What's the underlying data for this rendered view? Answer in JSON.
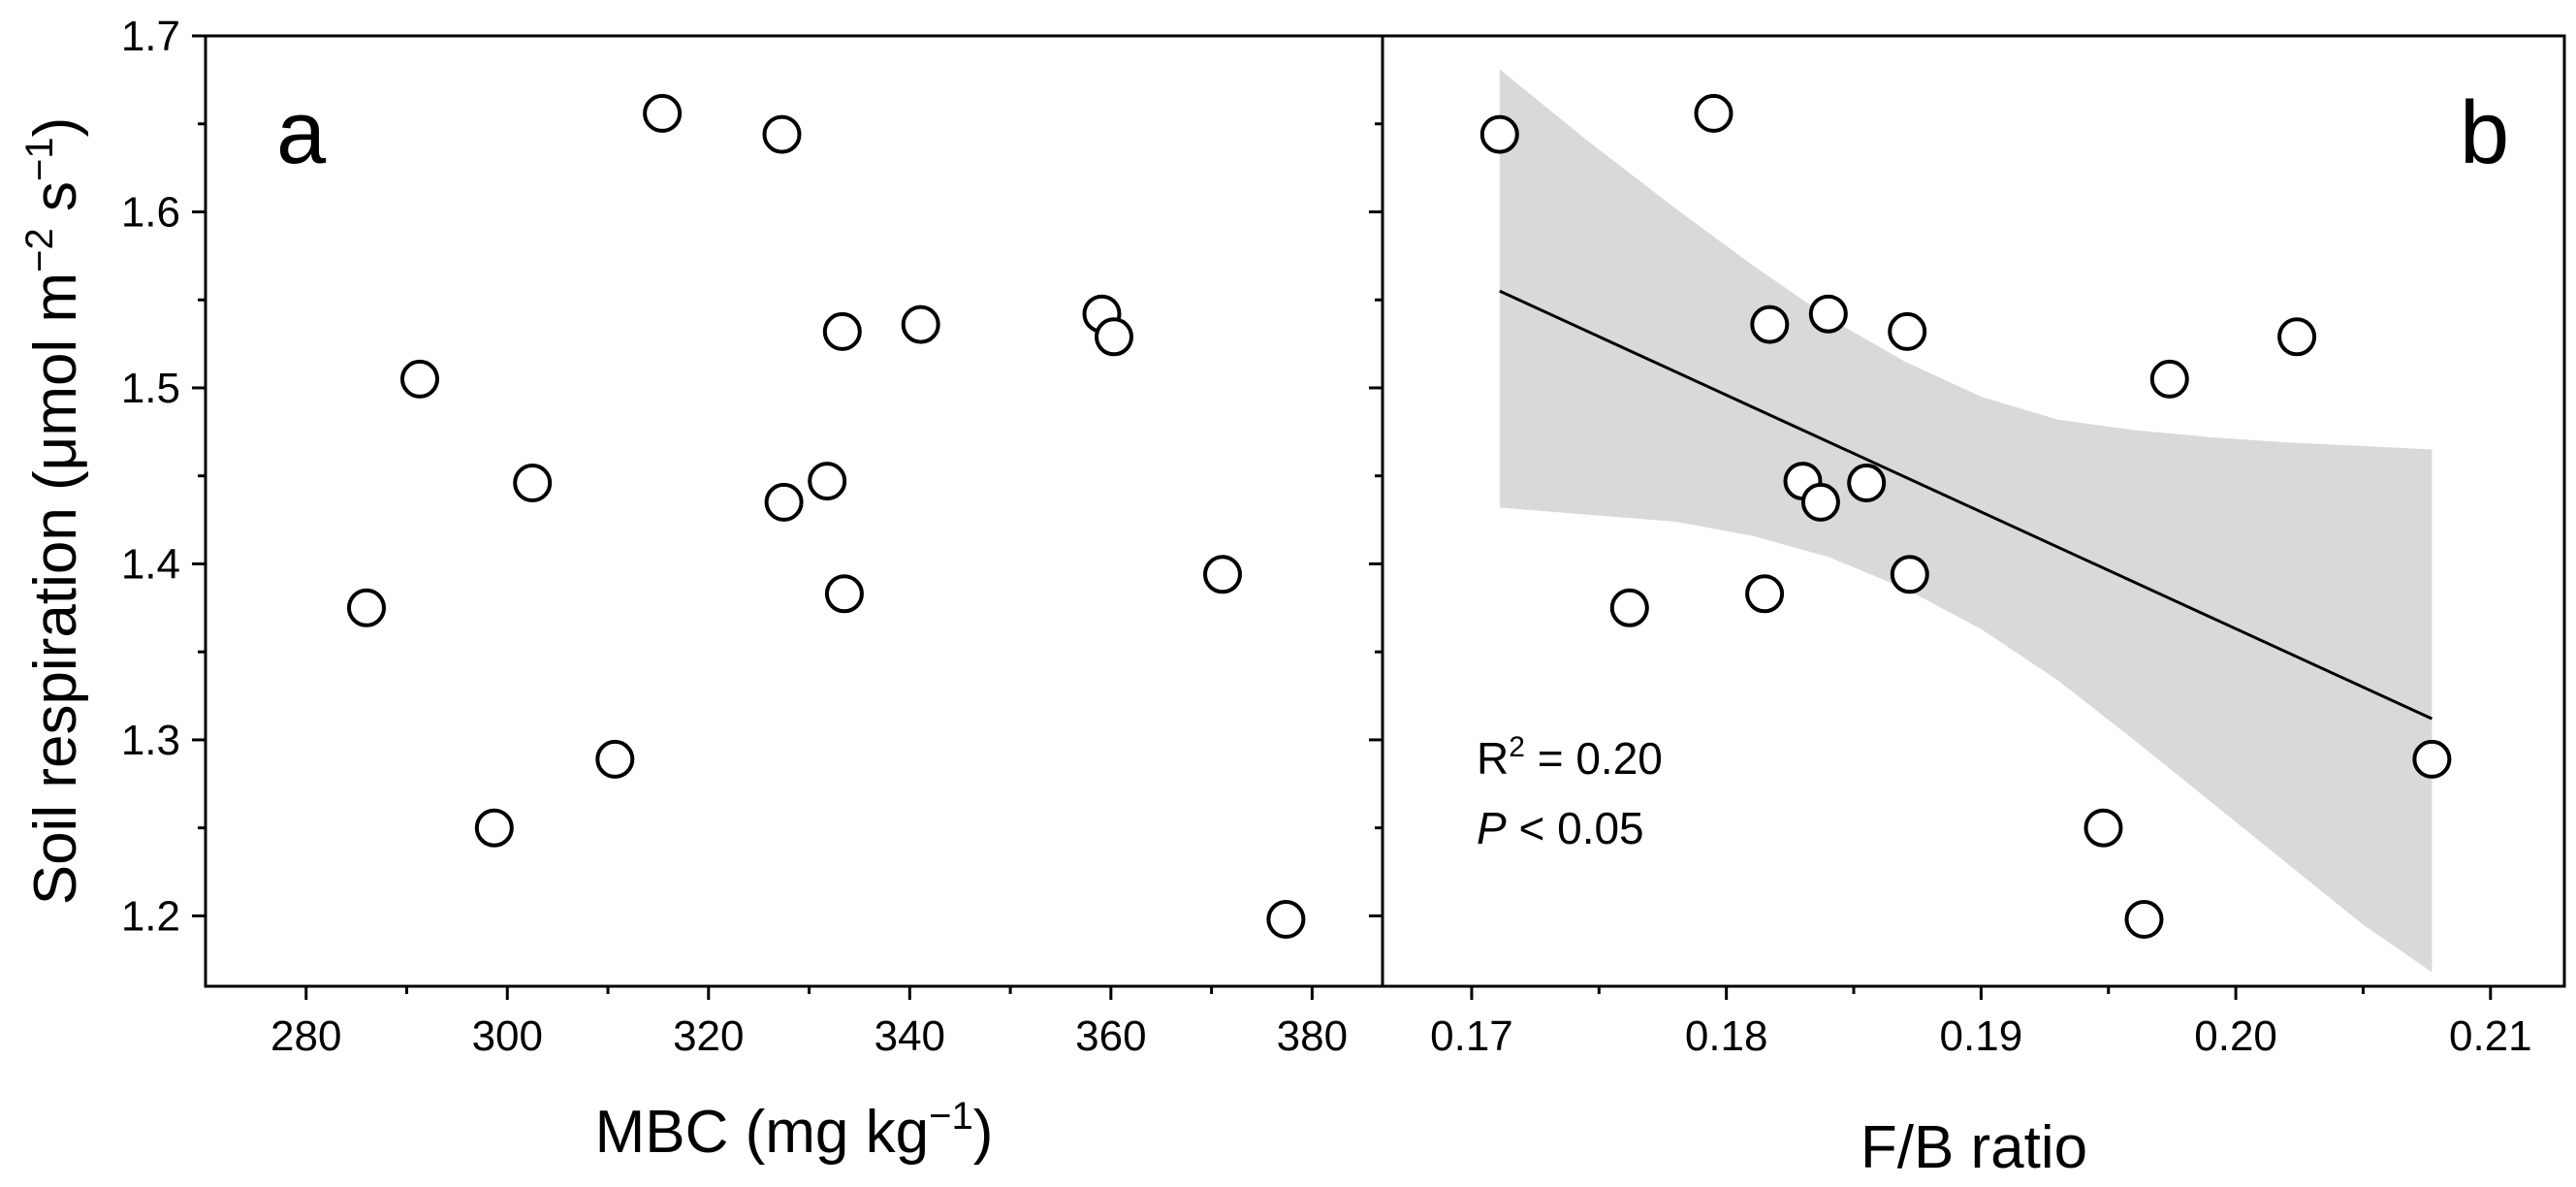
{
  "chart_data": [
    {
      "type": "scatter",
      "panel_label": "a",
      "xlabel": "MBC (mg kg",
      "xlabel_sup": "−1",
      "xlabel_end": ")",
      "ylabel": "Soil respiration (μmol m",
      "ylabel_sup1": "−2",
      "ylabel_mid": " s",
      "ylabel_sup2": "−1",
      "ylabel_end": ")",
      "xlim": [
        270,
        387
      ],
      "ylim": [
        1.16,
        1.7
      ],
      "xticks": [
        280,
        300,
        320,
        340,
        360,
        380
      ],
      "xtick_labels": [
        "280",
        "300",
        "320",
        "340",
        "360",
        "380"
      ],
      "yticks": [
        1.2,
        1.3,
        1.4,
        1.5,
        1.6,
        1.7
      ],
      "ytick_labels": [
        "1.2",
        "1.3",
        "1.4",
        "1.5",
        "1.6",
        "1.7"
      ],
      "points": [
        {
          "x": 286,
          "y": 1.375
        },
        {
          "x": 291.3,
          "y": 1.505
        },
        {
          "x": 298.7,
          "y": 1.25
        },
        {
          "x": 302.5,
          "y": 1.446
        },
        {
          "x": 310.7,
          "y": 1.289
        },
        {
          "x": 315.4,
          "y": 1.656
        },
        {
          "x": 327.3,
          "y": 1.644
        },
        {
          "x": 327.5,
          "y": 1.435
        },
        {
          "x": 331.8,
          "y": 1.447
        },
        {
          "x": 333.3,
          "y": 1.532
        },
        {
          "x": 333.5,
          "y": 1.383
        },
        {
          "x": 341.1,
          "y": 1.536
        },
        {
          "x": 359.1,
          "y": 1.542
        },
        {
          "x": 360.3,
          "y": 1.529
        },
        {
          "x": 371.1,
          "y": 1.394
        },
        {
          "x": 377.4,
          "y": 1.198
        }
      ]
    },
    {
      "type": "scatter",
      "panel_label": "b",
      "xlabel": "F/B ratio",
      "xlim": [
        0.1665,
        0.2129
      ],
      "ylim": [
        1.16,
        1.7
      ],
      "xticks": [
        0.17,
        0.18,
        0.19,
        0.2,
        0.21
      ],
      "xtick_labels": [
        "0.17",
        "0.18",
        "0.19",
        "0.20",
        "0.21"
      ],
      "yticks": [
        1.2,
        1.3,
        1.4,
        1.5,
        1.6,
        1.7
      ],
      "points": [
        {
          "x": 0.1711,
          "y": 1.644
        },
        {
          "x": 0.1762,
          "y": 1.375
        },
        {
          "x": 0.1795,
          "y": 1.656
        },
        {
          "x": 0.1815,
          "y": 1.383
        },
        {
          "x": 0.1817,
          "y": 1.536
        },
        {
          "x": 0.183,
          "y": 1.447
        },
        {
          "x": 0.1837,
          "y": 1.435
        },
        {
          "x": 0.184,
          "y": 1.542
        },
        {
          "x": 0.1855,
          "y": 1.446
        },
        {
          "x": 0.1871,
          "y": 1.532
        },
        {
          "x": 0.1872,
          "y": 1.394
        },
        {
          "x": 0.1948,
          "y": 1.25
        },
        {
          "x": 0.1964,
          "y": 1.198
        },
        {
          "x": 0.1974,
          "y": 1.505
        },
        {
          "x": 0.2024,
          "y": 1.529
        },
        {
          "x": 0.2077,
          "y": 1.289
        }
      ],
      "fit_line": {
        "x": [
          0.1711,
          0.2077
        ],
        "y": [
          1.555,
          1.312
        ]
      },
      "confidence_band": {
        "x": [
          0.1711,
          0.1745,
          0.178,
          0.181,
          0.184,
          0.187,
          0.19,
          0.193,
          0.196,
          0.199,
          0.202,
          0.205,
          0.2077
        ],
        "upper": [
          1.681,
          1.641,
          1.602,
          1.57,
          1.54,
          1.515,
          1.495,
          1.482,
          1.476,
          1.472,
          1.469,
          1.467,
          1.465
        ],
        "lower": [
          1.432,
          1.428,
          1.424,
          1.416,
          1.404,
          1.386,
          1.363,
          1.334,
          1.3,
          1.265,
          1.23,
          1.195,
          1.168
        ]
      },
      "band_color": "#d9d9d9",
      "annotation": {
        "r2_label": "R",
        "r2_sup": "2",
        "r2_value": " = 0.20",
        "p_label": "P",
        "p_value": " < 0.05"
      }
    }
  ]
}
